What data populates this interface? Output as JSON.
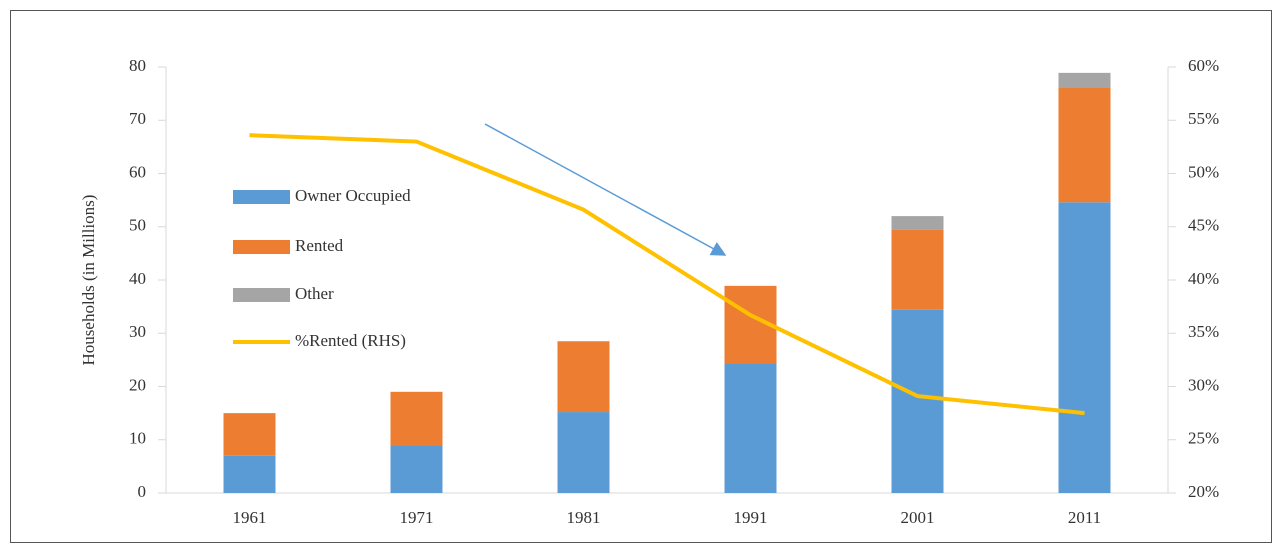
{
  "chart_data": {
    "type": "bar",
    "stacked": true,
    "y_label": "Households (in Millions)",
    "categories": [
      "1961",
      "1971",
      "1981",
      "1991",
      "2001",
      "2011"
    ],
    "series": [
      {
        "name": "Owner Occupied",
        "color": "#5b9bd5",
        "values": [
          7,
          9,
          15.2,
          24.4,
          34.4,
          54.6
        ]
      },
      {
        "name": "Rented",
        "color": "#ed7d31",
        "values": [
          8,
          10,
          13.3,
          14.5,
          15,
          21.6
        ]
      },
      {
        "name": "Other",
        "color": "#a5a5a5",
        "values": [
          0,
          0,
          0,
          0,
          2.6,
          2.7
        ]
      },
      {
        "name": "%Rented (RHS)",
        "type": "line",
        "axis": "y2",
        "color": "#ffc000",
        "values": [
          53.6,
          53,
          46.6,
          36.7,
          29.1,
          27.5
        ]
      }
    ],
    "ylim": [
      0,
      80
    ],
    "yticks": [
      0,
      10,
      20,
      30,
      40,
      50,
      60,
      70,
      80
    ],
    "y2lim": [
      20,
      60
    ],
    "y2ticks": [
      {
        "value": 20,
        "label": "20%"
      },
      {
        "value": 25,
        "label": "25%"
      },
      {
        "value": 30,
        "label": "30%"
      },
      {
        "value": 35,
        "label": "35%"
      },
      {
        "value": 40,
        "label": "40%"
      },
      {
        "value": 45,
        "label": "45%"
      },
      {
        "value": 50,
        "label": "50%"
      },
      {
        "value": 55,
        "label": "55%"
      },
      {
        "value": 60,
        "label": "60%"
      }
    ],
    "grid": false,
    "legend": "left"
  }
}
